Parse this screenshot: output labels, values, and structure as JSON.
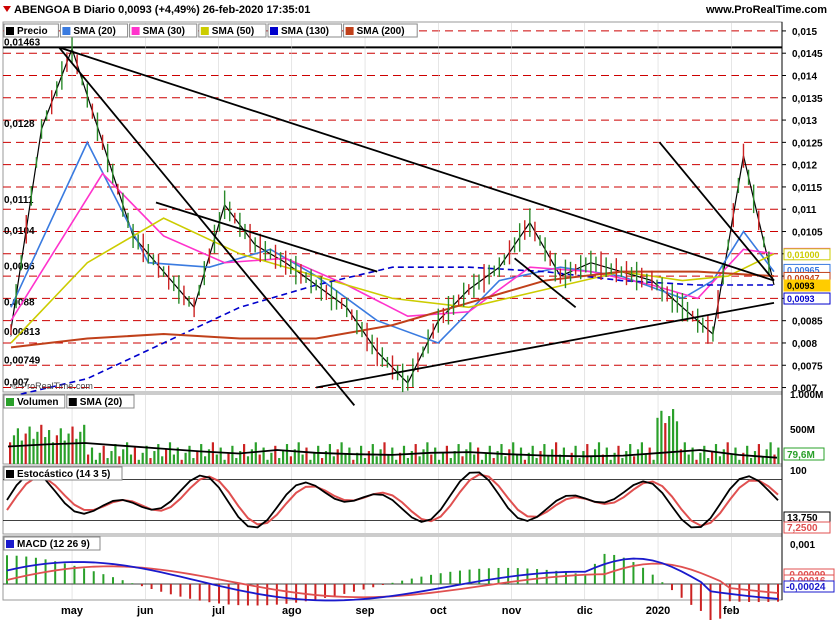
{
  "header": {
    "title": "ABENGOA B Diario 0,0093 (+4,49%) 26-feb-2020 17:35:01",
    "site": "www.ProRealTime.com",
    "watermark": "© ProRealTime.com"
  },
  "colors": {
    "price": "#000000",
    "sma20": "#3a7be0",
    "sma30": "#ff33cc",
    "sma50": "#cccc00",
    "sma130": "#0000cc",
    "sma200": "#c0401a",
    "volume_bar": "#2aa02a",
    "volume_bar_dn": "#cc2222",
    "stoch_k": "#000000",
    "stoch_d": "#e05050",
    "macd": "#1a1acc",
    "macd_signal": "#e05050"
  },
  "legend_price": [
    "Precio",
    "SMA (20)",
    "SMA (30)",
    "SMA (50)",
    "SMA (130)",
    "SMA (200)"
  ],
  "legend_volume": [
    "Volumen",
    "SMA (20)"
  ],
  "legend_stoch": "Estocástico (14 3 5)",
  "legend_macd": "MACD (12 26 9)",
  "chart_data": [
    {
      "type": "line",
      "panel": "price",
      "title": "ABENGOA B Diario 0,0093 (+4,49%) 26-feb-2020 17:35:01",
      "x_labels": [
        "may",
        "jun",
        "jul",
        "ago",
        "sep",
        "oct",
        "nov",
        "dic",
        "2020",
        "feb"
      ],
      "ylim": [
        0.0069,
        0.0152
      ],
      "y_ticks": [
        "0,015",
        "0,0145",
        "0,014",
        "0,0135",
        "0,013",
        "0,0125",
        "0,012",
        "0,0115",
        "0,011",
        "0,0105",
        "0,01",
        "0,0095",
        "0,009",
        "0,0085",
        "0,008",
        "0,0075",
        "0,007"
      ],
      "y_tick_values": [
        0.015,
        0.0145,
        0.014,
        0.0135,
        0.013,
        0.0125,
        0.012,
        0.0115,
        0.011,
        0.0105,
        0.01,
        0.0095,
        0.009,
        0.0085,
        0.008,
        0.0075,
        0.007
      ],
      "level_labels": [
        "0,01463",
        "0,0128",
        "0,0111",
        "0,0104",
        "0,0096",
        "0,0088",
        "0,00813",
        "0,00749",
        "0,007"
      ],
      "level_values": [
        0.01463,
        0.0128,
        0.0111,
        0.0104,
        0.0096,
        0.0088,
        0.00813,
        0.00749,
        0.007
      ],
      "right_badges": [
        {
          "label": "0,01001",
          "value": 0.01001,
          "color": "#ff33cc"
        },
        {
          "label": "0,01000",
          "value": 0.01,
          "color": "#cccc00"
        },
        {
          "label": "0,00965",
          "value": 0.00965,
          "color": "#3a7be0"
        },
        {
          "label": "0,00947",
          "value": 0.00947,
          "color": "#c0401a"
        },
        {
          "label": "0,0093",
          "value": 0.0093,
          "color": "#ffcc00"
        },
        {
          "label": "0,0093",
          "value": 0.0093,
          "color": "#0000cc"
        }
      ],
      "series": [
        {
          "name": "Precio",
          "x": [
            0,
            4,
            8,
            12,
            16,
            20,
            24,
            28,
            32,
            36,
            40,
            44,
            48,
            52,
            56,
            60,
            64,
            68,
            72,
            76,
            80,
            84,
            88,
            92,
            96,
            100
          ],
          "values": [
            0.0083,
            0.0128,
            0.0146,
            0.0125,
            0.0104,
            0.0096,
            0.0088,
            0.0111,
            0.0102,
            0.0098,
            0.0093,
            0.0088,
            0.0078,
            0.0071,
            0.0085,
            0.0092,
            0.0097,
            0.0107,
            0.0095,
            0.0098,
            0.0096,
            0.0094,
            0.0088,
            0.0082,
            0.0122,
            0.0093
          ]
        },
        {
          "name": "SMA (20)",
          "x": [
            0,
            10,
            18,
            26,
            34,
            40,
            48,
            56,
            64,
            72,
            80,
            88,
            92,
            96,
            100
          ],
          "values": [
            0.0088,
            0.0125,
            0.0098,
            0.0097,
            0.0101,
            0.0095,
            0.0085,
            0.008,
            0.0094,
            0.0097,
            0.0095,
            0.009,
            0.0094,
            0.0105,
            0.0096
          ]
        },
        {
          "name": "SMA (30)",
          "x": [
            0,
            12,
            20,
            28,
            36,
            44,
            52,
            60,
            68,
            76,
            84,
            90,
            96,
            100
          ],
          "values": [
            0.0085,
            0.0118,
            0.0104,
            0.0098,
            0.0099,
            0.0093,
            0.0086,
            0.0087,
            0.0097,
            0.0096,
            0.0093,
            0.009,
            0.0101,
            0.01
          ]
        },
        {
          "name": "SMA (50)",
          "x": [
            0,
            10,
            20,
            30,
            40,
            50,
            60,
            70,
            80,
            88,
            94,
            100
          ],
          "values": [
            0.008,
            0.0098,
            0.0108,
            0.01,
            0.0095,
            0.009,
            0.0088,
            0.0092,
            0.0096,
            0.0094,
            0.0095,
            0.01
          ]
        },
        {
          "name": "SMA (130)",
          "x": [
            0,
            10,
            20,
            30,
            40,
            50,
            60,
            70,
            80,
            90,
            100
          ],
          "values": [
            0.0068,
            0.0072,
            0.008,
            0.0088,
            0.0093,
            0.0097,
            0.0097,
            0.0096,
            0.0094,
            0.0093,
            0.0093
          ]
        },
        {
          "name": "SMA (200)",
          "x": [
            0,
            10,
            20,
            30,
            40,
            50,
            60,
            70,
            80,
            90,
            100
          ],
          "values": [
            0.0079,
            0.0081,
            0.0082,
            0.0081,
            0.0081,
            0.0084,
            0.0089,
            0.0094,
            0.0096,
            0.0096,
            0.0095
          ]
        }
      ]
    },
    {
      "type": "bar",
      "panel": "volume",
      "title": "Volumen",
      "ylim": [
        0,
        1000
      ],
      "y_ticks": [
        "1.000M",
        "500M"
      ],
      "y_tick_values": [
        1000,
        500
      ],
      "right_badge": "79,6M",
      "sma_label": "SMA (20)"
    },
    {
      "type": "line",
      "panel": "stochastic",
      "title": "Estocástico (14 3 5)",
      "ylim": [
        0,
        100
      ],
      "y_ticks": [
        "100",
        "13,750",
        "7,2500"
      ],
      "y_tick_values": [
        100,
        13.75,
        7.25
      ]
    },
    {
      "type": "line",
      "panel": "macd",
      "title": "MACD (12 26 9)",
      "ylim": [
        -0.0004,
        0.0012
      ],
      "y_ticks": [
        "0,001",
        "-0,00009",
        "-0,00016",
        "-0,00024"
      ],
      "y_tick_values": [
        0.001,
        -9e-05,
        -0.00016,
        -0.00024
      ]
    }
  ]
}
